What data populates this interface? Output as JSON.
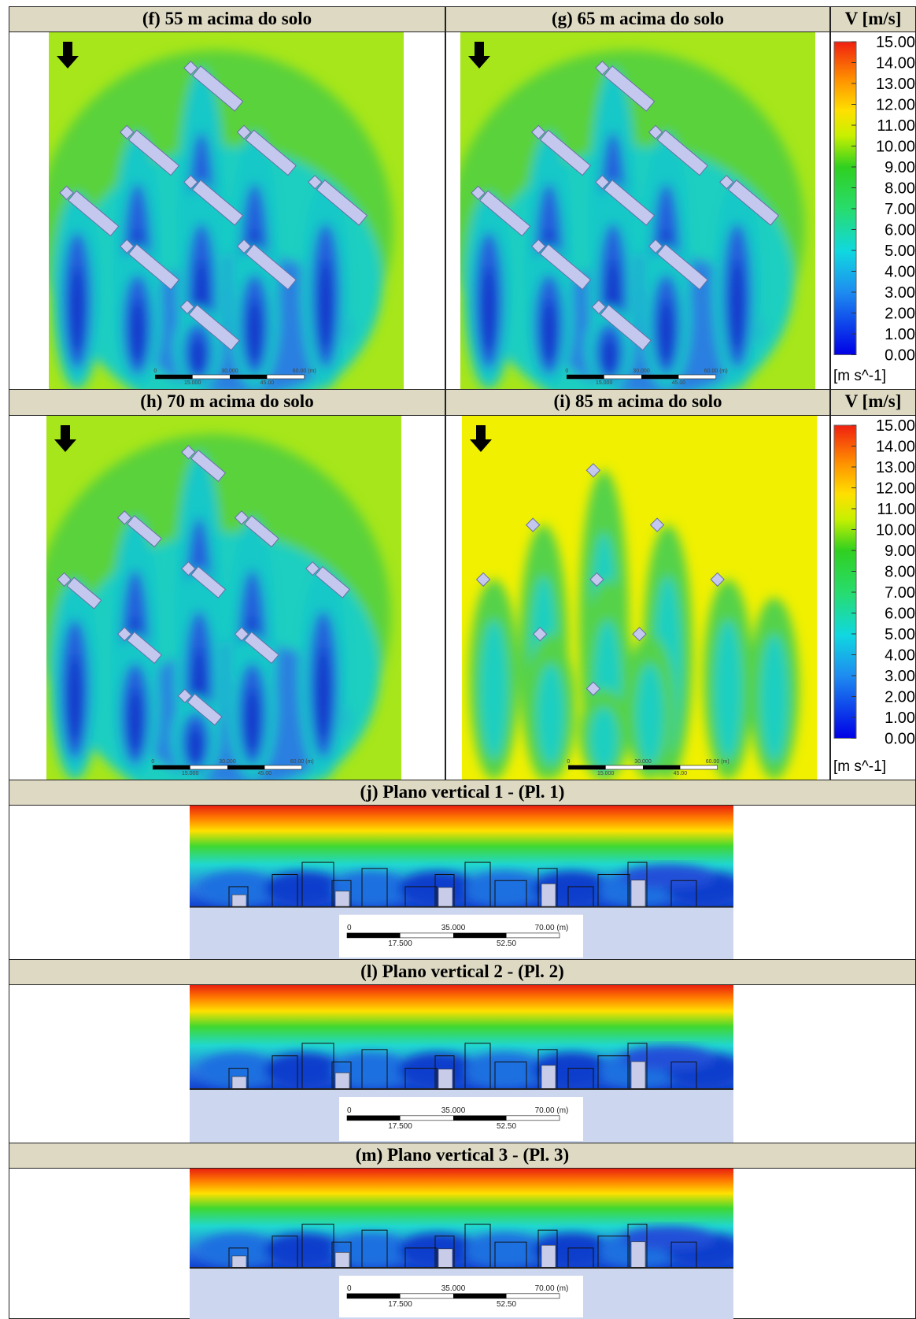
{
  "maps": [
    {
      "title": "(f) 55 m acima do solo",
      "scale_top": [
        "0",
        "30.000",
        "60.00 (m)"
      ],
      "scale_bottom": [
        "15.000",
        "45.00"
      ]
    },
    {
      "title": "(g) 65 m acima do solo",
      "scale_top": [
        "0",
        "30.000",
        "60.00 (m)"
      ],
      "scale_bottom": [
        "15.000",
        "45.00"
      ]
    },
    {
      "title": "(h) 70 m acima do solo",
      "scale_top": [
        "0",
        "30.000",
        "60.00 (m)"
      ],
      "scale_bottom": [
        "15.000",
        "45.00"
      ]
    },
    {
      "title": "(i) 85 m acima do solo",
      "scale_top": [
        "0",
        "30.000",
        "60.00 (m)"
      ],
      "scale_bottom": [
        "15.000",
        "45.00"
      ]
    }
  ],
  "legends": [
    {
      "title": "V [m/s]",
      "ticks": [
        "15.00",
        "14.00",
        "13.00",
        "12.00",
        "11.00",
        "10.00",
        "9.00",
        "8.00",
        "7.00",
        "6.00",
        "5.00",
        "4.00",
        "3.00",
        "2.00",
        "1.00",
        "0.00"
      ],
      "unit": "[m s^-1]"
    },
    {
      "title": "V [m/s]",
      "ticks": [
        "15.00",
        "14.00",
        "13.00",
        "12.00",
        "11.00",
        "10.00",
        "9.00",
        "8.00",
        "7.00",
        "6.00",
        "5.00",
        "4.00",
        "3.00",
        "2.00",
        "1.00",
        "0.00"
      ],
      "unit": "[m s^-1]"
    }
  ],
  "sections": [
    {
      "title": "(j) Plano vertical 1 - (Pl. 1)",
      "scale_top": [
        "0",
        "35.000",
        "70.00 (m)"
      ],
      "scale_bottom": [
        "17.500",
        "52.50"
      ]
    },
    {
      "title": "(l) Plano vertical 2 - (Pl. 2)",
      "scale_top": [
        "0",
        "35.000",
        "70.00 (m)"
      ],
      "scale_bottom": [
        "17.500",
        "52.50"
      ]
    },
    {
      "title": "(m) Plano vertical 3 - (Pl. 3)",
      "scale_top": [
        "0",
        "35.000",
        "70.00 (m)"
      ],
      "scale_bottom": [
        "17.500",
        "52.50"
      ]
    }
  ]
}
